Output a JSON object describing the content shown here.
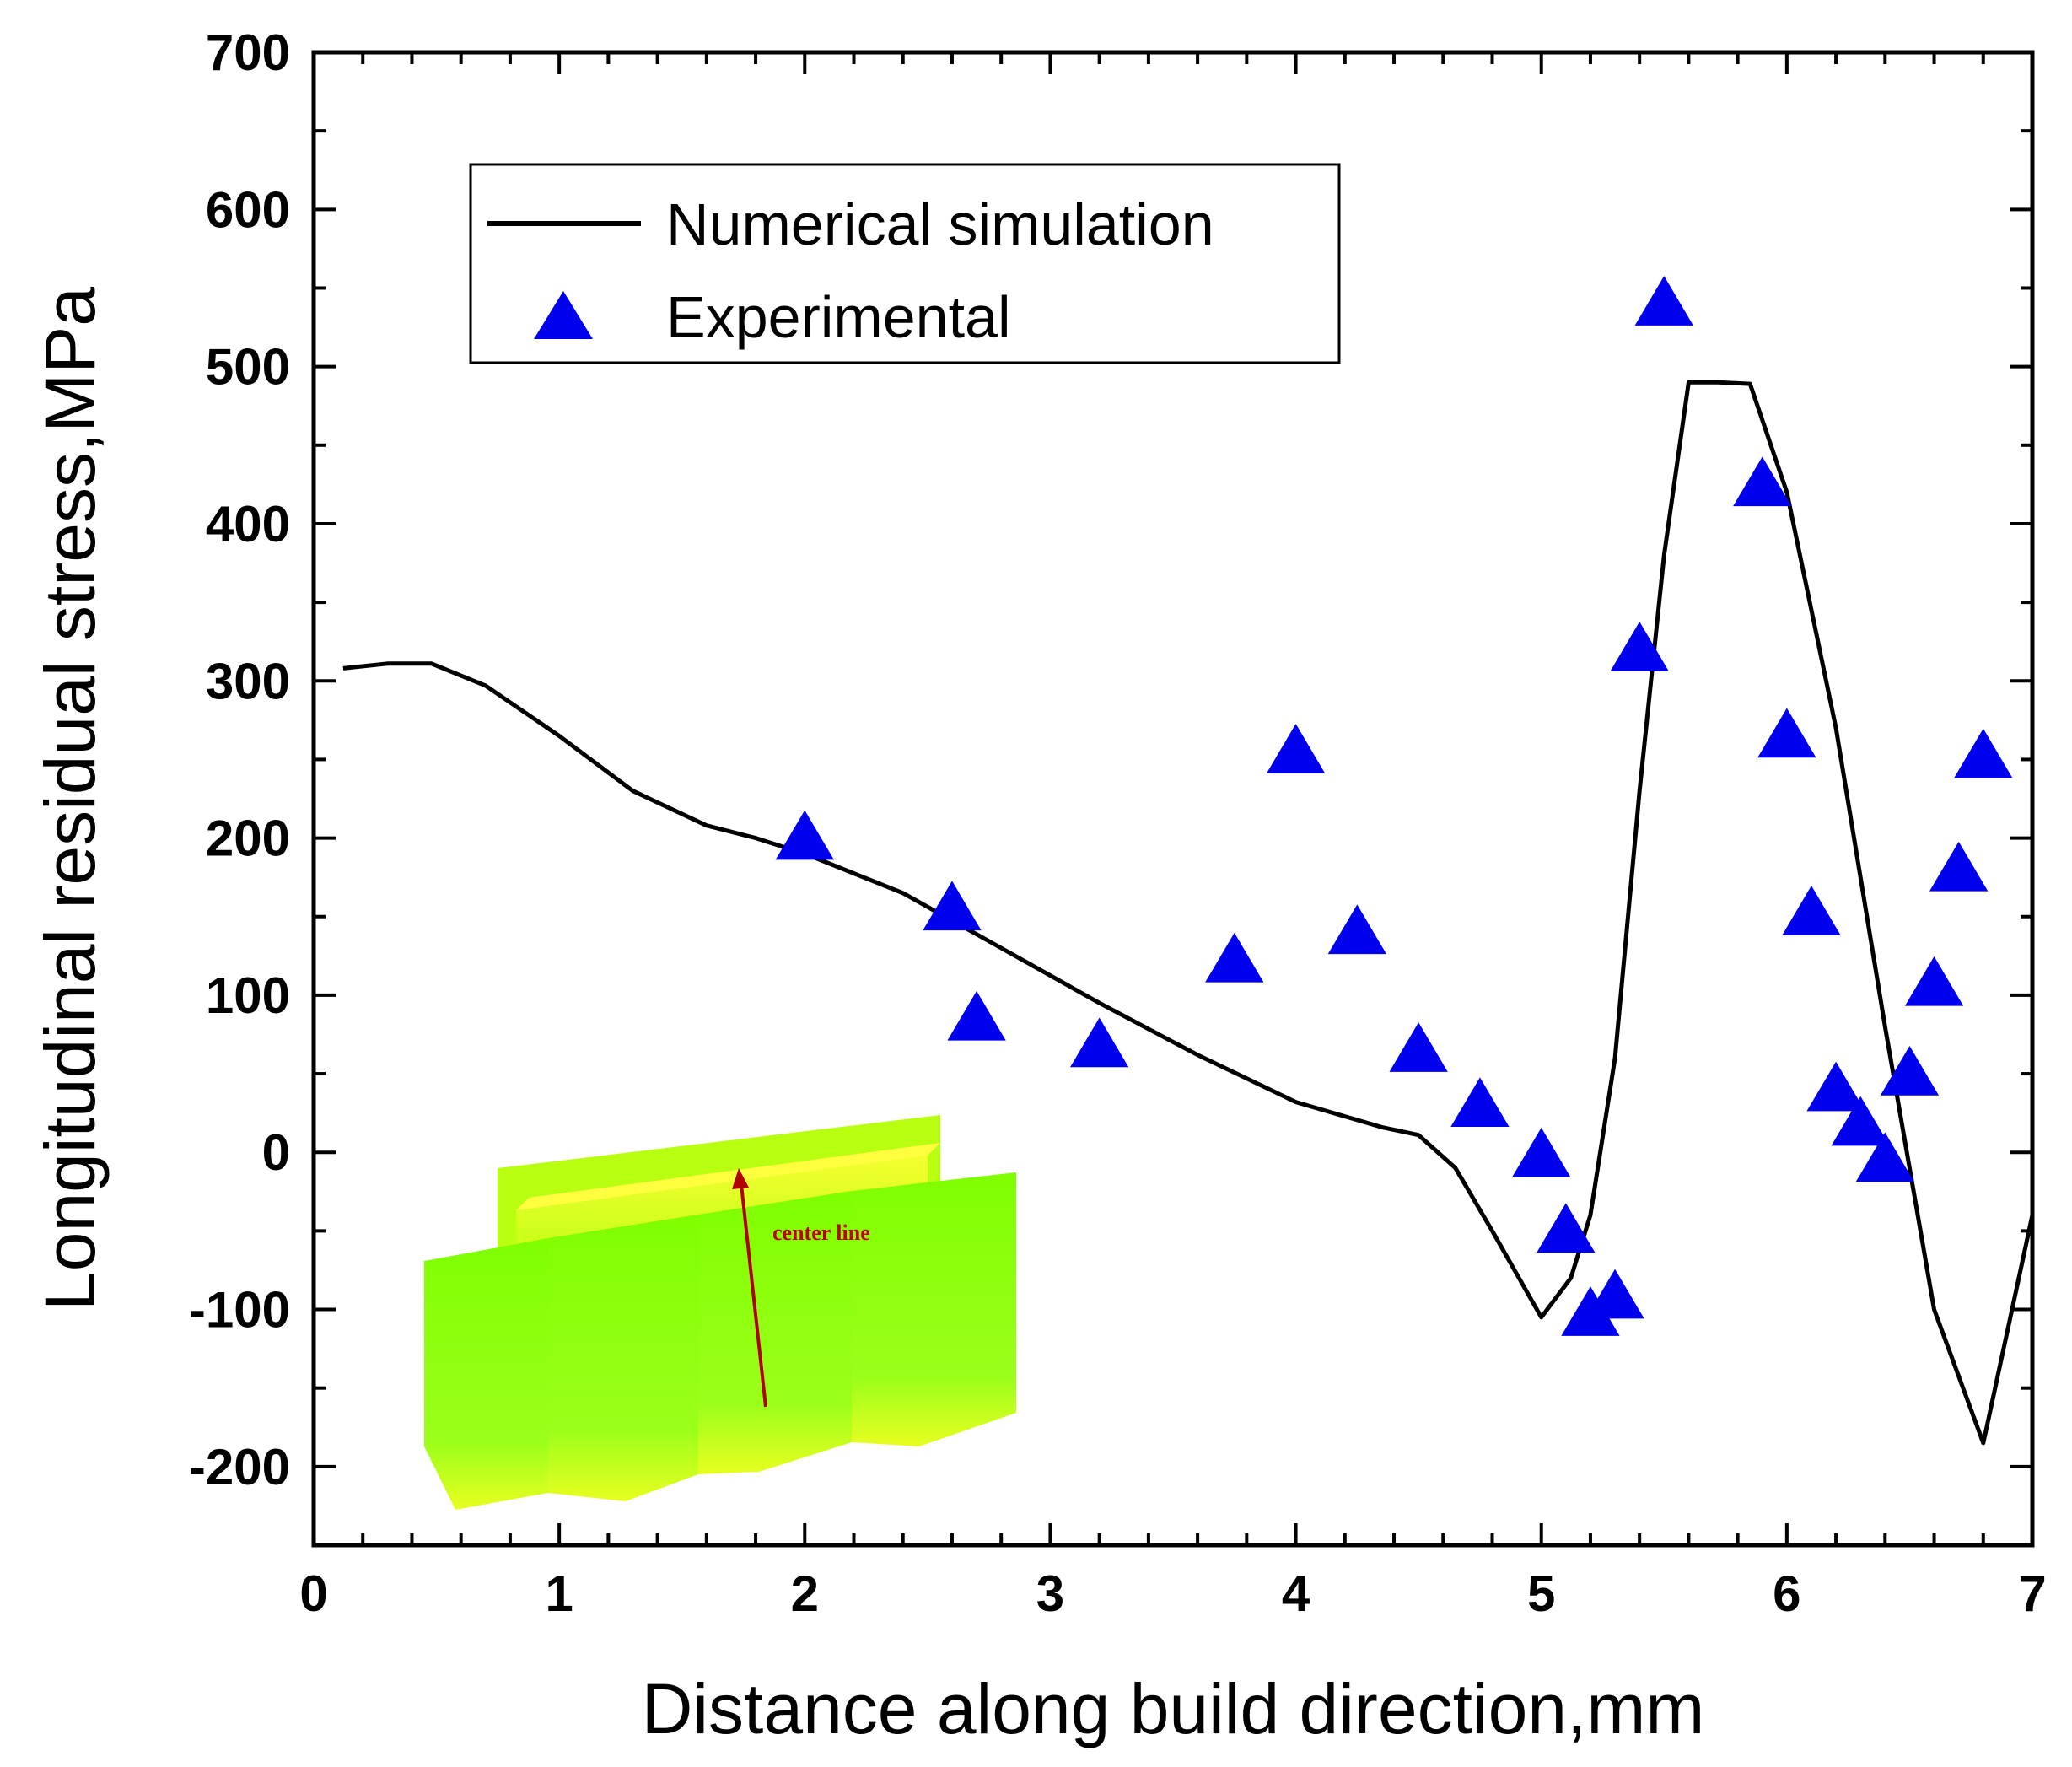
{
  "chart_data": {
    "type": "line",
    "title": "",
    "xlabel": "Distance along build direction,mm",
    "ylabel": "Longitudinal residual stress,MPa",
    "xlim": [
      0,
      7
    ],
    "ylim": [
      -250,
      700
    ],
    "xticks": [
      0,
      1,
      2,
      3,
      4,
      5,
      6,
      7
    ],
    "yticks": [
      -200,
      -100,
      0,
      100,
      200,
      300,
      400,
      500,
      600,
      700
    ],
    "grid": false,
    "legend_position": "top-left",
    "series": [
      {
        "name": "Numerical simulation",
        "kind": "line",
        "color": "#000000",
        "x": [
          0.12,
          0.3,
          0.48,
          0.7,
          1.0,
          1.3,
          1.6,
          1.8,
          2.0,
          2.4,
          2.8,
          3.2,
          3.6,
          4.0,
          4.35,
          4.5,
          4.65,
          4.8,
          5.0,
          5.12,
          5.2,
          5.3,
          5.4,
          5.5,
          5.6,
          5.72,
          5.85,
          6.0,
          6.2,
          6.4,
          6.6,
          6.8,
          7.0
        ],
        "y": [
          308,
          311,
          311,
          297,
          265,
          230,
          208,
          200,
          190,
          165,
          130,
          95,
          62,
          32,
          16,
          11,
          -10,
          -50,
          -105,
          -80,
          -40,
          60,
          230,
          380,
          490,
          490,
          489,
          420,
          270,
          80,
          -100,
          -185,
          -40
        ]
      },
      {
        "name": "Experimental",
        "kind": "scatter",
        "marker": "triangle",
        "color": "#0000ee",
        "x": [
          2.0,
          2.6,
          2.7,
          3.2,
          3.75,
          4.0,
          4.25,
          4.5,
          4.75,
          5.0,
          5.1,
          5.2,
          5.3,
          5.4,
          5.5,
          5.9,
          6.0,
          6.1,
          6.2,
          6.3,
          6.4,
          6.5,
          6.6,
          6.7,
          6.8
        ],
        "y": [
          200,
          155,
          85,
          68,
          122,
          255,
          140,
          65,
          30,
          -2,
          -50,
          -103,
          -92,
          320,
          540,
          425,
          265,
          152,
          40,
          18,
          -5,
          50,
          107,
          180,
          252
        ]
      }
    ],
    "inset": {
      "label": "center line"
    }
  }
}
